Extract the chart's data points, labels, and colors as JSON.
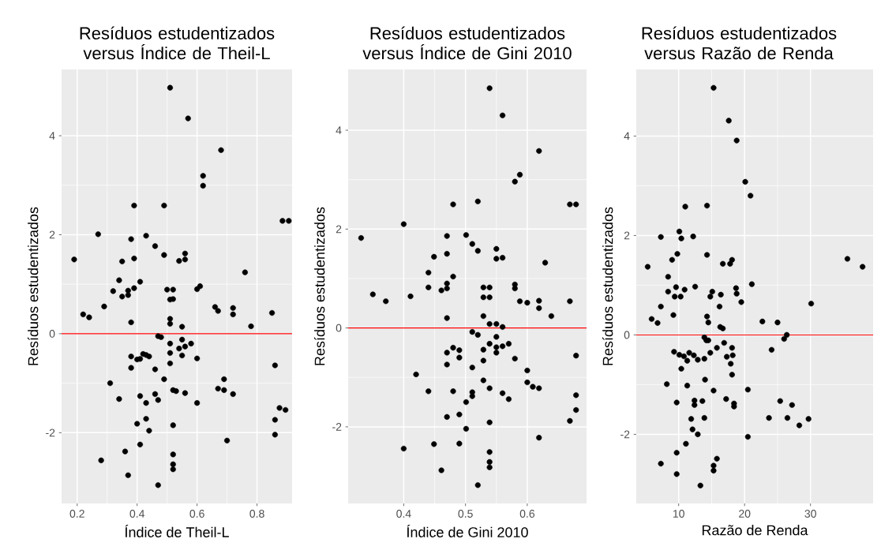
{
  "chart_data": [
    {
      "type": "scatter",
      "title": "Resíduos estudentizados versus Índice de Theil-L",
      "xlabel": "Índice de Theil-L",
      "ylabel": "Resíduos estudentizados",
      "color": "#000000",
      "marker": "circle",
      "grid": true,
      "xlim": [
        0.148,
        0.917
      ],
      "ylim": [
        -3.43,
        5.34
      ],
      "xticks": [
        0.2,
        0.4,
        0.6,
        0.8
      ],
      "yticks": [
        -2,
        0,
        2,
        4
      ],
      "ref_lines": [
        {
          "axis": "y",
          "value": 0,
          "color": "#ff0000"
        }
      ],
      "x": [
        0.19,
        0.22,
        0.24,
        0.27,
        0.29,
        0.32,
        0.35,
        0.37,
        0.37,
        0.39,
        0.34,
        0.35,
        0.39,
        0.41,
        0.38,
        0.43,
        0.46,
        0.39,
        0.49,
        0.49,
        0.51,
        0.57,
        0.68,
        0.62,
        0.62,
        0.885,
        0.906,
        0.56,
        0.54,
        0.56,
        0.76,
        0.5,
        0.52,
        0.51,
        0.52,
        0.6,
        0.61,
        0.66,
        0.67,
        0.72,
        0.72,
        0.85,
        0.78,
        0.38,
        0.51,
        0.51,
        0.55,
        0.47,
        0.48,
        0.51,
        0.55,
        0.54,
        0.56,
        0.58,
        0.51,
        0.55,
        0.6,
        0.38,
        0.4,
        0.41,
        0.42,
        0.43,
        0.44,
        0.51,
        0.38,
        0.46,
        0.86,
        0.49,
        0.69,
        0.31,
        0.67,
        0.69,
        0.72,
        0.52,
        0.53,
        0.56,
        0.46,
        0.47,
        0.41,
        0.43,
        0.34,
        0.6,
        0.875,
        0.895,
        0.86,
        0.86,
        0.43,
        0.4,
        0.44,
        0.52,
        0.7,
        0.41,
        0.36,
        0.28,
        0.52,
        0.52,
        0.52,
        0.37,
        0.47
      ],
      "values": [
        1.5,
        0.39,
        0.33,
        2.01,
        0.55,
        0.86,
        0.75,
        0.78,
        0.87,
        0.92,
        1.08,
        1.46,
        1.52,
        1.05,
        1.91,
        1.98,
        1.77,
        2.59,
        2.59,
        1.59,
        4.97,
        4.35,
        3.71,
        3.19,
        2.99,
        2.28,
        2.28,
        1.62,
        1.47,
        1.5,
        1.24,
        0.89,
        0.89,
        0.69,
        0.7,
        0.9,
        0.96,
        0.54,
        0.46,
        0.52,
        0.39,
        0.42,
        0.15,
        0.23,
        0.3,
        0.2,
        0.14,
        -0.05,
        -0.07,
        -0.2,
        -0.12,
        -0.3,
        -0.26,
        -0.2,
        -0.39,
        -0.44,
        -0.5,
        -0.46,
        -0.52,
        -0.51,
        -0.41,
        -0.43,
        -0.46,
        -0.6,
        -0.69,
        -0.72,
        -0.64,
        -0.92,
        -0.92,
        -1.0,
        -1.11,
        -1.14,
        -1.22,
        -1.14,
        -1.16,
        -1.2,
        -1.22,
        -1.34,
        -1.26,
        -1.4,
        -1.32,
        -1.4,
        -1.5,
        -1.54,
        -1.74,
        -2.04,
        -1.72,
        -1.82,
        -1.96,
        -1.85,
        -2.16,
        -2.24,
        -2.38,
        -2.56,
        -2.44,
        -2.64,
        -2.74,
        -2.86,
        -3.06
      ]
    },
    {
      "type": "scatter",
      "title": "Resíduos estudentizados versus Índice de Gini 2010",
      "xlabel": "Índice de Gini 2010",
      "ylabel": "Resíduos estudentizados",
      "color": "#000000",
      "marker": "circle",
      "grid": true,
      "xlim": [
        0.31,
        0.696
      ],
      "ylim": [
        -3.55,
        5.23
      ],
      "xticks": [
        0.4,
        0.5,
        0.6
      ],
      "yticks": [
        -2,
        0,
        2,
        4
      ],
      "ref_lines": [
        {
          "axis": "y",
          "value": 0,
          "color": "#ff0000"
        }
      ],
      "x": [
        0.539,
        0.56,
        0.619,
        0.588,
        0.58,
        0.48,
        0.52,
        0.669,
        0.679,
        0.4,
        0.331,
        0.47,
        0.501,
        0.511,
        0.52,
        0.55,
        0.55,
        0.56,
        0.449,
        0.47,
        0.629,
        0.44,
        0.48,
        0.47,
        0.47,
        0.461,
        0.44,
        0.529,
        0.539,
        0.529,
        0.539,
        0.58,
        0.58,
        0.35,
        0.371,
        0.411,
        0.588,
        0.6,
        0.619,
        0.669,
        0.619,
        0.639,
        0.47,
        0.529,
        0.539,
        0.55,
        0.56,
        0.511,
        0.52,
        0.55,
        0.539,
        0.55,
        0.56,
        0.57,
        0.55,
        0.529,
        0.48,
        0.49,
        0.47,
        0.49,
        0.529,
        0.58,
        0.679,
        0.47,
        0.511,
        0.6,
        0.42,
        0.529,
        0.6,
        0.609,
        0.619,
        0.539,
        0.44,
        0.48,
        0.511,
        0.511,
        0.56,
        0.57,
        0.501,
        0.679,
        0.679,
        0.669,
        0.49,
        0.47,
        0.539,
        0.501,
        0.619,
        0.4,
        0.449,
        0.49,
        0.539,
        0.539,
        0.539,
        0.461,
        0.52
      ],
      "values": [
        4.85,
        4.3,
        3.58,
        3.1,
        2.96,
        2.5,
        2.56,
        2.5,
        2.5,
        2.1,
        1.82,
        1.86,
        1.88,
        1.7,
        1.56,
        1.6,
        1.4,
        1.42,
        1.44,
        1.5,
        1.32,
        1.12,
        1.04,
        0.9,
        0.8,
        0.76,
        0.82,
        0.82,
        0.82,
        0.62,
        0.62,
        0.88,
        0.8,
        0.68,
        0.54,
        0.64,
        0.54,
        0.51,
        0.55,
        0.54,
        0.4,
        0.24,
        0.2,
        0.24,
        0.08,
        0.08,
        0.02,
        -0.08,
        -0.14,
        -0.18,
        -0.32,
        -0.39,
        -0.37,
        -0.32,
        -0.5,
        -0.44,
        -0.4,
        -0.45,
        -0.5,
        -0.6,
        -0.66,
        -0.62,
        -0.56,
        -0.74,
        -0.8,
        -0.86,
        -0.94,
        -1.06,
        -1.1,
        -1.19,
        -1.22,
        -1.22,
        -1.28,
        -1.28,
        -1.3,
        -1.38,
        -1.32,
        -1.44,
        -1.5,
        -1.36,
        -1.66,
        -1.88,
        -1.75,
        -1.8,
        -1.91,
        -2.04,
        -2.22,
        -2.44,
        -2.35,
        -2.34,
        -2.51,
        -2.71,
        -2.82,
        -2.88,
        -3.18
      ]
    },
    {
      "type": "scatter",
      "title": "Resíduos estudentizados versus Razão de Renda",
      "xlabel": "Razão de Renda",
      "ylabel": "Resíduos estudentizados",
      "color": "#000000",
      "marker": "circle",
      "grid": true,
      "xlim": [
        3.57,
        39.5
      ],
      "ylim": [
        -3.39,
        5.34
      ],
      "xticks": [
        10,
        20,
        30
      ],
      "yticks": [
        -2,
        0,
        2,
        4
      ],
      "ref_lines": [
        {
          "axis": "y",
          "value": 0,
          "color": "#ff0000"
        }
      ],
      "x": [
        15.3,
        17.6,
        18.8,
        20.1,
        20.9,
        11.0,
        14.3,
        7.3,
        10.1,
        10.4,
        12.2,
        9.8,
        9.0,
        14.3,
        16.7,
        17.8,
        18.1,
        5.3,
        35.6,
        37.9,
        8.4,
        9.6,
        8.4,
        9.4,
        10.3,
        10.9,
        12.5,
        14.8,
        15.1,
        16.4,
        18.7,
        18.8,
        21.1,
        19.5,
        30.1,
        7.3,
        5.9,
        6.8,
        9.2,
        16.2,
        14.3,
        14.5,
        16.3,
        16.7,
        22.7,
        25.0,
        26.4,
        26.0,
        13.9,
        14.2,
        14.5,
        16.9,
        18.1,
        15.8,
        24.1,
        9.3,
        10.1,
        10.8,
        11.6,
        12.3,
        11.3,
        12.9,
        13.9,
        14.8,
        17.3,
        18.2,
        17.9,
        10.4,
        18.1,
        14.0,
        8.2,
        11.3,
        15.3,
        20.5,
        9.7,
        12.4,
        12.4,
        13.6,
        17.2,
        18.4,
        18.4,
        25.4,
        27.2,
        11.9,
        13.9,
        12.1,
        12.9,
        23.7,
        26.5,
        28.3,
        29.7,
        20.5,
        11.1,
        9.7,
        7.3,
        15.8,
        15.3,
        15.3,
        9.7,
        13.3
      ],
      "values": [
        4.97,
        4.31,
        3.91,
        3.08,
        2.8,
        2.58,
        2.6,
        1.97,
        2.08,
        1.94,
        1.98,
        1.63,
        1.51,
        1.61,
        1.43,
        1.43,
        1.51,
        1.37,
        1.53,
        1.37,
        1.17,
        0.96,
        0.87,
        0.77,
        0.77,
        0.91,
        0.97,
        0.77,
        0.87,
        0.81,
        0.94,
        0.83,
        1.02,
        0.66,
        0.63,
        0.57,
        0.32,
        0.24,
        0.4,
        0.57,
        0.37,
        0.25,
        0.16,
        0.13,
        0.27,
        0.25,
        0.0,
        -0.08,
        -0.05,
        -0.11,
        -0.11,
        -0.16,
        -0.26,
        -0.26,
        -0.3,
        -0.34,
        -0.4,
        -0.43,
        -0.36,
        -0.41,
        -0.52,
        -0.5,
        -0.48,
        -0.36,
        -0.44,
        -0.41,
        -0.58,
        -0.68,
        -0.8,
        -0.9,
        -0.99,
        -1.02,
        -1.12,
        -1.1,
        -1.36,
        -1.32,
        -1.41,
        -1.33,
        -1.29,
        -1.38,
        -1.44,
        -1.33,
        -1.41,
        -1.69,
        -1.67,
        -1.9,
        -2.0,
        -1.67,
        -1.67,
        -1.82,
        -1.69,
        -2.05,
        -2.19,
        -2.37,
        -2.59,
        -2.49,
        -2.63,
        -2.73,
        -2.8,
        -3.03
      ]
    }
  ]
}
